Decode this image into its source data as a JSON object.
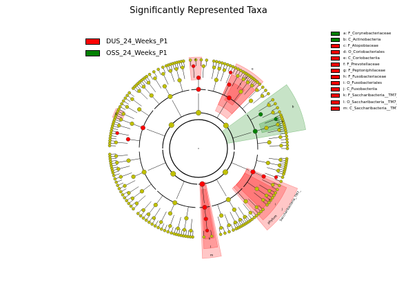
{
  "chart_data": {
    "type": "cladogram",
    "title": "Significantly Represented Taxa",
    "groups": [
      {
        "name": "DUS_24_Weeks_P1",
        "color": "#ff0000"
      },
      {
        "name": "OSS_24_Weeks_P1",
        "color": "#008000"
      }
    ],
    "node_colors": {
      "neutral": "#c0c000",
      "DUS_24_Weeks_P1": "#ff0000",
      "OSS_24_Weeks_P1": "#008000"
    },
    "enriched_clades": [
      {
        "key": "a",
        "name": "F_Corynebacteriaceae",
        "group": "OSS_24_Weeks_P1"
      },
      {
        "key": "b",
        "name": "C_Actinobacteria",
        "group": "OSS_24_Weeks_P1"
      },
      {
        "key": "c",
        "name": "F_Atopobiaceae",
        "group": "DUS_24_Weeks_P1"
      },
      {
        "key": "d",
        "name": "O_Coriobacteriales",
        "group": "DUS_24_Weeks_P1"
      },
      {
        "key": "e",
        "name": "C_Coriobacteriia",
        "group": "DUS_24_Weeks_P1"
      },
      {
        "key": "f",
        "name": "F_Prevotellaceae",
        "group": "DUS_24_Weeks_P1"
      },
      {
        "key": "g",
        "name": "F_Peptoniphilaceae",
        "group": "DUS_24_Weeks_P1"
      },
      {
        "key": "h",
        "name": "F_Fusobacteriaceae",
        "group": "DUS_24_Weeks_P1"
      },
      {
        "key": "i",
        "name": "O_Fusobacteriales",
        "group": "DUS_24_Weeks_P1"
      },
      {
        "key": "j",
        "name": "C_Fusobacteriia",
        "group": "DUS_24_Weeks_P1"
      },
      {
        "key": "k",
        "name": "F_Saccharibacteria__TM7__unknown_family",
        "group": "DUS_24_Weeks_P1"
      },
      {
        "key": "l",
        "name": "O_Saccharibacteria__TM7__unknown_order",
        "group": "DUS_24_Weeks_P1"
      },
      {
        "key": "m",
        "name": "C_Saccharibacteria__TM7__unknown_class",
        "group": "DUS_24_Weeks_P1"
      }
    ],
    "legend_entries": [
      "a: F_Corynebacteriaceae",
      "b: C_Actinobacteria",
      "c: F_Atopobiaceae",
      "d: O_Coriobacteriales",
      "e: C_Coriobacteriia",
      "f: F_Prevotellaceae",
      "g: F_Peptoniphilaceae",
      "h: F_Fusobacteriaceae",
      "i: O_Fusobacteriales",
      "j: C_Fusobacteriia",
      "k: F_Saccharibacteria__TM7__unknown_family",
      "l: O_Saccharibacteria__TM7__unknown_order",
      "m: C_Saccharibacteria__TM7__unknown_class"
    ],
    "outer_labels": [
      "Saccharibacteria_TM7_",
      "phylum"
    ]
  }
}
